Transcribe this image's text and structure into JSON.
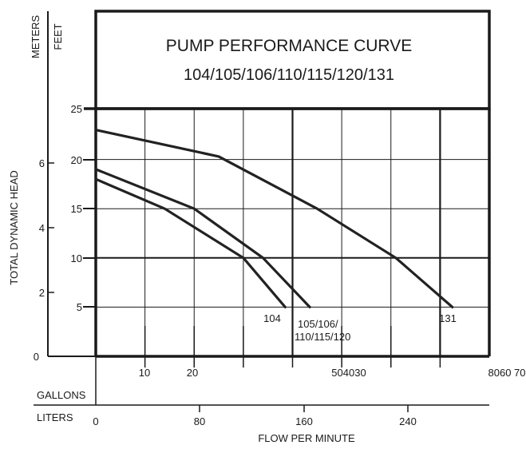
{
  "chart_data": {
    "type": "line",
    "title": "PUMP PERFORMANCE CURVE",
    "subtitle": "104/105/106/110/115/120/131",
    "ylabel": "TOTAL DYNAMIC HEAD",
    "ylabel_left_unit": "METERS",
    "ylabel_right_unit": "FEET",
    "xlabel": "FLOW PER MINUTE",
    "x_row1_label": "GALLONS",
    "x_row2_label": "LITERS",
    "feet_ticks": [
      "25",
      "20",
      "15",
      "10",
      "5",
      "0"
    ],
    "meter_ticks": [
      "6",
      "4",
      "2",
      "0"
    ],
    "gallon_tick_labels": [
      "10",
      "20",
      "504030",
      "8060 70"
    ],
    "liter_ticks": [
      "0",
      "80",
      "160",
      "240"
    ],
    "ylim_feet": [
      0,
      25
    ],
    "xlim_gallons": [
      0,
      80
    ],
    "grid": true,
    "series": [
      {
        "name": "104",
        "x": [
          0,
          14,
          30,
          38.5
        ],
        "y": [
          18,
          15,
          10,
          5
        ]
      },
      {
        "name": "105/106/ 110/115/120",
        "name_lines": [
          "105/106/",
          "110/115/120"
        ],
        "x": [
          0,
          20,
          34,
          43.5
        ],
        "y": [
          19,
          15,
          10,
          5
        ]
      },
      {
        "name": "131",
        "x": [
          0,
          25,
          45,
          61,
          72.5
        ],
        "y": [
          23,
          20.3,
          15,
          10,
          5
        ]
      }
    ]
  }
}
